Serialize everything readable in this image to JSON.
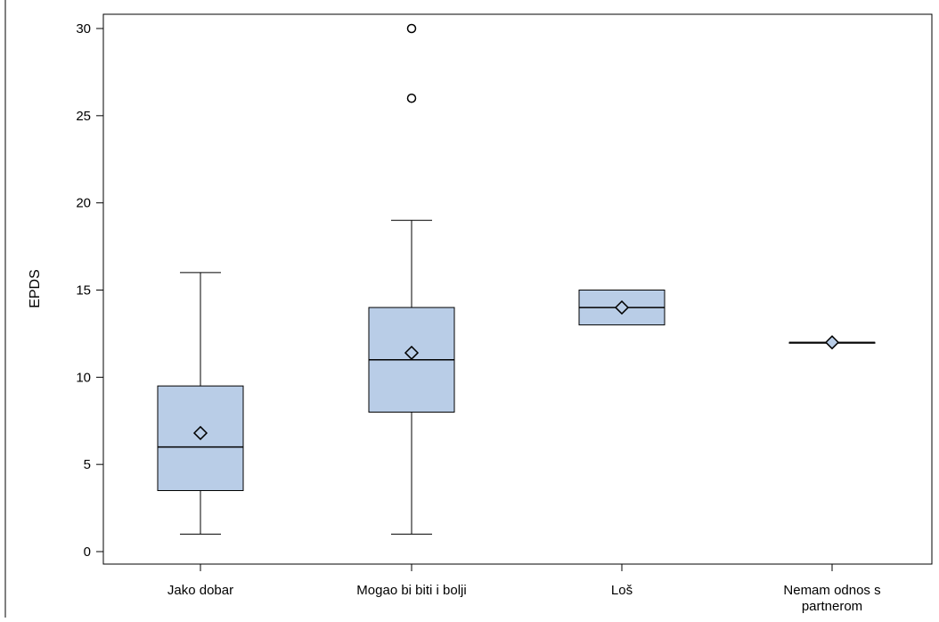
{
  "chart_data": {
    "type": "box",
    "ylabel": "EPDS",
    "xlabel": "",
    "ylim": [
      0,
      30
    ],
    "yticks": [
      "0",
      "5",
      "10",
      "15",
      "20",
      "25",
      "30"
    ],
    "categories": [
      [
        "Jako dobar"
      ],
      [
        "Mogao bi biti i bolji"
      ],
      [
        "Loš"
      ],
      [
        "Nemam odnos s",
        "partnerom"
      ]
    ],
    "boxes": [
      {
        "min": 1,
        "q1": 3.5,
        "median": 6,
        "q3": 9.5,
        "max": 16,
        "mean": 6.8,
        "outliers": []
      },
      {
        "min": 1,
        "q1": 8,
        "median": 11,
        "q3": 14,
        "max": 19,
        "mean": 11.4,
        "outliers": [
          26,
          30
        ]
      },
      {
        "min": 13,
        "q1": 13,
        "median": 14,
        "q3": 15,
        "max": 15,
        "mean": 14,
        "outliers": []
      },
      {
        "min": 12,
        "q1": 12,
        "median": 12,
        "q3": 12,
        "max": 12,
        "mean": 12,
        "outliers": []
      }
    ],
    "grid": false,
    "legend": "none",
    "colors": {
      "box_fill": "#b9cde7",
      "stroke": "#000000",
      "frame": "#000000"
    }
  }
}
